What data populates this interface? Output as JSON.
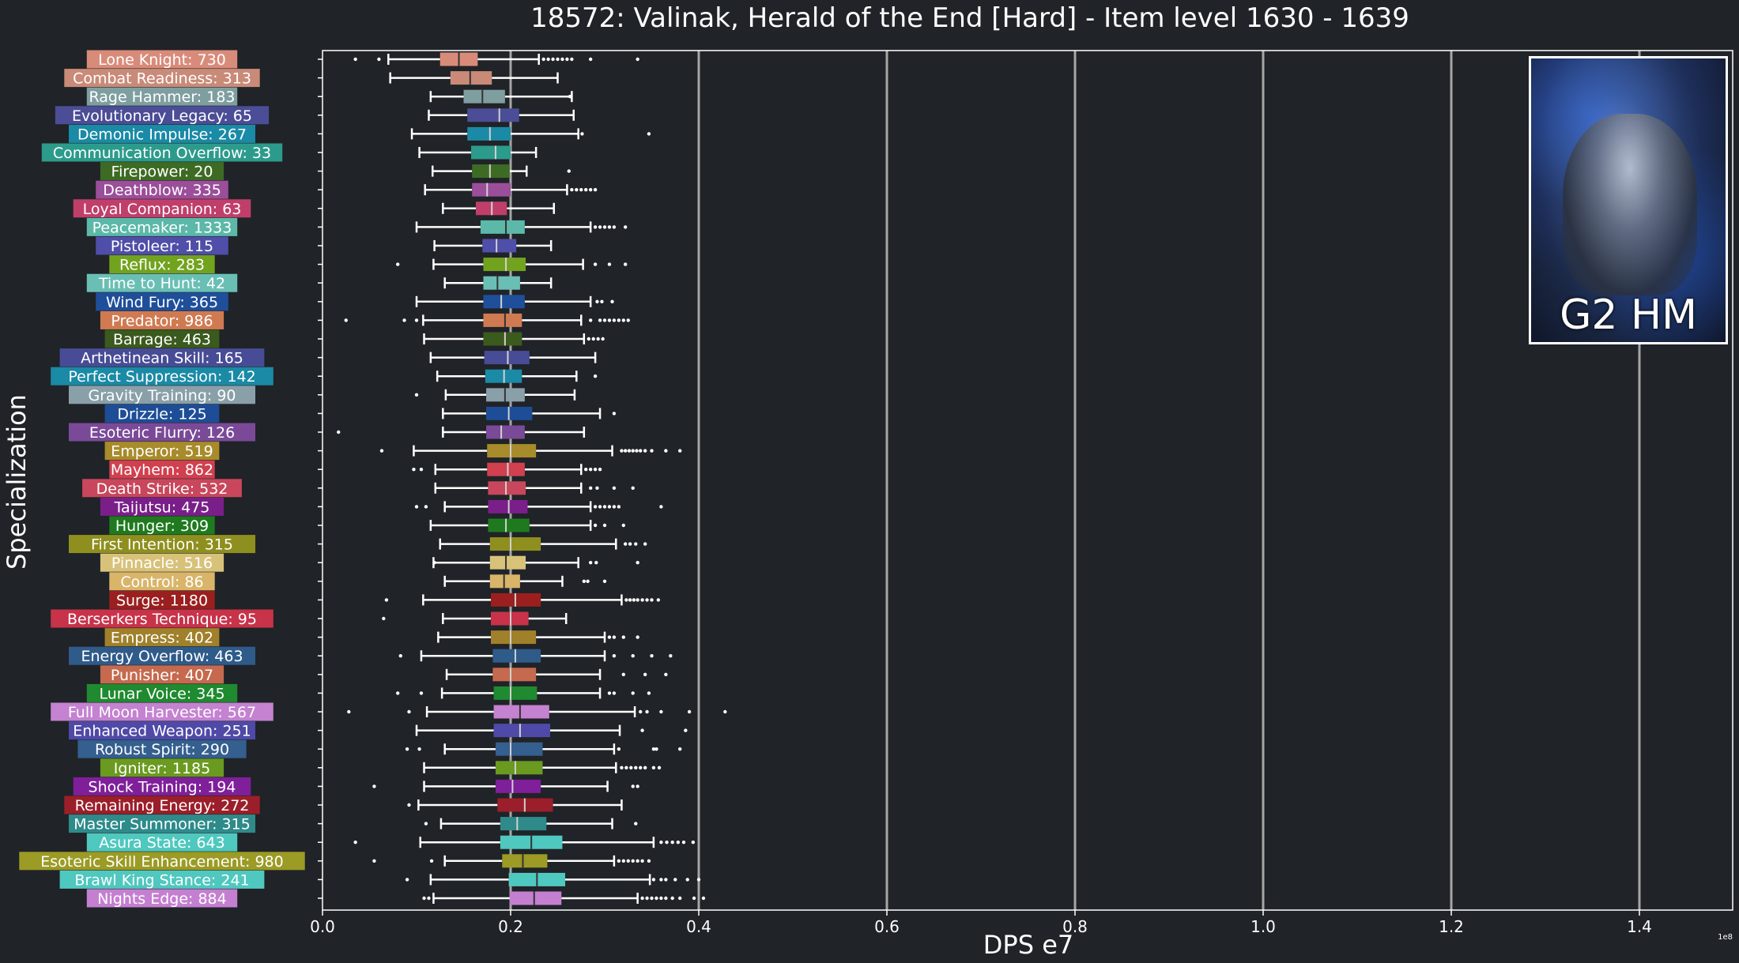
{
  "title": "18572: Valinak, Herald of the End [Hard] - Item level 1630 - 1639",
  "image_badge": "G2 HM",
  "chart_data": {
    "type": "boxplot",
    "orientation": "horizontal",
    "title": "18572: Valinak, Herald of the End [Hard] - Item level 1630 - 1639",
    "xlabel": "DPS e7",
    "ylabel": "Specialization",
    "offset_text": "1e8",
    "xlim": [
      0,
      1.5
    ],
    "xticks": [
      "0.0",
      "0.2",
      "0.4",
      "0.6",
      "0.8",
      "1.0",
      "1.2",
      "1.4"
    ],
    "xtick_values": [
      0,
      0.2,
      0.4,
      0.6,
      0.8,
      1.0,
      1.2,
      1.4
    ],
    "grid": "vertical",
    "categories": [
      {
        "label": "Lone Knight: 730",
        "color": "#d98b7a",
        "whisker": [
          0.07,
          0.23
        ],
        "q1": 0.125,
        "median": 0.145,
        "q3": 0.165,
        "outliers": [
          0.035,
          0.06,
          0.235,
          0.24,
          0.245,
          0.25,
          0.255,
          0.26,
          0.265,
          0.285,
          0.335
        ]
      },
      {
        "label": "Combat Readiness: 313",
        "color": "#c98a78",
        "whisker": [
          0.072,
          0.25
        ],
        "q1": 0.136,
        "median": 0.157,
        "q3": 0.18,
        "outliers": []
      },
      {
        "label": "Rage Hammer: 183",
        "color": "#7f9ea0",
        "whisker": [
          0.115,
          0.265
        ],
        "q1": 0.15,
        "median": 0.17,
        "q3": 0.194,
        "outliers": [
          0.263
        ]
      },
      {
        "label": "Evolutionary Legacy: 65",
        "color": "#4b4d96",
        "whisker": [
          0.113,
          0.267
        ],
        "q1": 0.154,
        "median": 0.188,
        "q3": 0.209,
        "outliers": []
      },
      {
        "label": "Demonic Impulse: 267",
        "color": "#1a8aa6",
        "whisker": [
          0.095,
          0.272
        ],
        "q1": 0.154,
        "median": 0.178,
        "q3": 0.2,
        "outliers": [
          0.276,
          0.347
        ]
      },
      {
        "label": "Communication Overflow: 33",
        "color": "#2c9b8c",
        "whisker": [
          0.103,
          0.227
        ],
        "q1": 0.158,
        "median": 0.184,
        "q3": 0.2,
        "outliers": []
      },
      {
        "label": "Firepower: 20",
        "color": "#3d6b23",
        "whisker": [
          0.117,
          0.217
        ],
        "q1": 0.159,
        "median": 0.178,
        "q3": 0.199,
        "outliers": [
          0.262
        ]
      },
      {
        "label": "Deathblow: 335",
        "color": "#9b4e9a",
        "whisker": [
          0.109,
          0.26
        ],
        "q1": 0.159,
        "median": 0.175,
        "q3": 0.2,
        "outliers": [
          0.265,
          0.27,
          0.275,
          0.28,
          0.285,
          0.29
        ]
      },
      {
        "label": "Loyal Companion: 63",
        "color": "#c03f6a",
        "whisker": [
          0.128,
          0.246
        ],
        "q1": 0.163,
        "median": 0.18,
        "q3": 0.196,
        "outliers": []
      },
      {
        "label": "Peacemaker: 1333",
        "color": "#5cb8a8",
        "whisker": [
          0.1,
          0.285
        ],
        "q1": 0.168,
        "median": 0.195,
        "q3": 0.215,
        "outliers": [
          0.29,
          0.295,
          0.3,
          0.305,
          0.31,
          0.322
        ]
      },
      {
        "label": "Pistoleer: 115",
        "color": "#4f4ea8",
        "whisker": [
          0.119,
          0.243
        ],
        "q1": 0.17,
        "median": 0.185,
        "q3": 0.206,
        "outliers": []
      },
      {
        "label": "Reflux: 283",
        "color": "#72a31f",
        "whisker": [
          0.118,
          0.277
        ],
        "q1": 0.171,
        "median": 0.195,
        "q3": 0.216,
        "outliers": [
          0.08,
          0.29,
          0.305,
          0.322
        ]
      },
      {
        "label": "Time to Hunt: 42",
        "color": "#6abfb5",
        "whisker": [
          0.13,
          0.243
        ],
        "q1": 0.171,
        "median": 0.186,
        "q3": 0.21,
        "outliers": []
      },
      {
        "label": "Wind Fury: 365",
        "color": "#1f4f9b",
        "whisker": [
          0.1,
          0.285
        ],
        "q1": 0.171,
        "median": 0.19,
        "q3": 0.215,
        "outliers": [
          0.292,
          0.297,
          0.308
        ]
      },
      {
        "label": "Predator: 986",
        "color": "#d07a52",
        "whisker": [
          0.107,
          0.275
        ],
        "q1": 0.171,
        "median": 0.194,
        "q3": 0.212,
        "outliers": [
          0.025,
          0.087,
          0.1,
          0.285,
          0.295,
          0.3,
          0.305,
          0.31,
          0.315,
          0.32,
          0.325
        ]
      },
      {
        "label": "Barrage: 463",
        "color": "#3b5a1e",
        "whisker": [
          0.108,
          0.278
        ],
        "q1": 0.171,
        "median": 0.194,
        "q3": 0.212,
        "outliers": [
          0.283,
          0.288,
          0.293,
          0.298
        ]
      },
      {
        "label": "Arthetinean Skill: 165",
        "color": "#484c96",
        "whisker": [
          0.115,
          0.29
        ],
        "q1": 0.172,
        "median": 0.197,
        "q3": 0.22,
        "outliers": []
      },
      {
        "label": "Perfect Suppression: 142",
        "color": "#1a8aa6",
        "whisker": [
          0.122,
          0.27
        ],
        "q1": 0.173,
        "median": 0.193,
        "q3": 0.212,
        "outliers": [
          0.29
        ]
      },
      {
        "label": "Gravity Training: 90",
        "color": "#8aa0a8",
        "whisker": [
          0.131,
          0.268
        ],
        "q1": 0.174,
        "median": 0.194,
        "q3": 0.215,
        "outliers": [
          0.1
        ]
      },
      {
        "label": "Drizzle: 125",
        "color": "#1d4d96",
        "whisker": [
          0.128,
          0.295
        ],
        "q1": 0.174,
        "median": 0.198,
        "q3": 0.223,
        "outliers": [
          0.31
        ]
      },
      {
        "label": "Esoteric Flurry: 126",
        "color": "#7a4a98",
        "whisker": [
          0.128,
          0.278
        ],
        "q1": 0.174,
        "median": 0.19,
        "q3": 0.215,
        "outliers": [
          0.017
        ]
      },
      {
        "label": "Emperor: 519",
        "color": "#a88b2a",
        "whisker": [
          0.097,
          0.308
        ],
        "q1": 0.175,
        "median": 0.2,
        "q3": 0.227,
        "outliers": [
          0.063,
          0.318,
          0.322,
          0.326,
          0.33,
          0.334,
          0.338,
          0.343,
          0.35,
          0.365,
          0.38
        ]
      },
      {
        "label": "Mayhem: 862",
        "color": "#d0404f",
        "whisker": [
          0.12,
          0.275
        ],
        "q1": 0.175,
        "median": 0.197,
        "q3": 0.215,
        "outliers": [
          0.097,
          0.105,
          0.28,
          0.285,
          0.29,
          0.295
        ]
      },
      {
        "label": "Death Strike: 532",
        "color": "#c8475c",
        "whisker": [
          0.12,
          0.275
        ],
        "q1": 0.176,
        "median": 0.195,
        "q3": 0.216,
        "outliers": [
          0.285,
          0.292,
          0.31,
          0.33
        ]
      },
      {
        "label": "Taijutsu: 475",
        "color": "#7a1f8a",
        "whisker": [
          0.13,
          0.285
        ],
        "q1": 0.176,
        "median": 0.198,
        "q3": 0.218,
        "outliers": [
          0.1,
          0.11,
          0.29,
          0.295,
          0.3,
          0.305,
          0.31,
          0.315,
          0.36
        ]
      },
      {
        "label": "Hunger: 309",
        "color": "#1f7a1f",
        "whisker": [
          0.115,
          0.285
        ],
        "q1": 0.176,
        "median": 0.195,
        "q3": 0.22,
        "outliers": [
          0.29,
          0.3,
          0.32
        ]
      },
      {
        "label": "First Intention: 315",
        "color": "#8f8f1f",
        "whisker": [
          0.125,
          0.312
        ],
        "q1": 0.178,
        "median": 0.2,
        "q3": 0.232,
        "outliers": [
          0.322,
          0.327,
          0.333,
          0.343
        ]
      },
      {
        "label": "Pinnacle: 516",
        "color": "#d8c27a",
        "whisker": [
          0.118,
          0.272
        ],
        "q1": 0.178,
        "median": 0.195,
        "q3": 0.216,
        "outliers": [
          0.119,
          0.285,
          0.291,
          0.335
        ]
      },
      {
        "label": "Control: 86",
        "color": "#d9b56a",
        "whisker": [
          0.13,
          0.255
        ],
        "q1": 0.178,
        "median": 0.193,
        "q3": 0.21,
        "outliers": [
          0.278,
          0.282,
          0.3
        ]
      },
      {
        "label": "Surge: 1180",
        "color": "#9b1f1f",
        "whisker": [
          0.107,
          0.318
        ],
        "q1": 0.179,
        "median": 0.205,
        "q3": 0.232,
        "outliers": [
          0.068,
          0.323,
          0.327,
          0.331,
          0.335,
          0.34,
          0.345,
          0.35,
          0.357
        ]
      },
      {
        "label": "Berserkers Technique: 95",
        "color": "#c8334a",
        "whisker": [
          0.128,
          0.259
        ],
        "q1": 0.179,
        "median": 0.2,
        "q3": 0.219,
        "outliers": [
          0.065
        ]
      },
      {
        "label": "Empress: 402",
        "color": "#a0802a",
        "whisker": [
          0.123,
          0.3
        ],
        "q1": 0.179,
        "median": 0.2,
        "q3": 0.227,
        "outliers": [
          0.305,
          0.31,
          0.32,
          0.335
        ]
      },
      {
        "label": "Energy Overflow: 463",
        "color": "#2f5b8a",
        "whisker": [
          0.105,
          0.3
        ],
        "q1": 0.181,
        "median": 0.205,
        "q3": 0.232,
        "outliers": [
          0.083,
          0.31,
          0.33,
          0.35,
          0.37
        ]
      },
      {
        "label": "Punisher: 407",
        "color": "#c56a4e",
        "whisker": [
          0.132,
          0.295
        ],
        "q1": 0.181,
        "median": 0.2,
        "q3": 0.227,
        "outliers": [
          0.32,
          0.343,
          0.365
        ]
      },
      {
        "label": "Lunar Voice: 345",
        "color": "#1f8a2f",
        "whisker": [
          0.127,
          0.295
        ],
        "q1": 0.182,
        "median": 0.2,
        "q3": 0.228,
        "outliers": [
          0.08,
          0.105,
          0.305,
          0.31,
          0.33,
          0.347
        ]
      },
      {
        "label": "Full Moon Harvester: 567",
        "color": "#c482d0",
        "whisker": [
          0.111,
          0.332
        ],
        "q1": 0.182,
        "median": 0.21,
        "q3": 0.241,
        "outliers": [
          0.028,
          0.092,
          0.338,
          0.345,
          0.36,
          0.39,
          0.428
        ]
      },
      {
        "label": "Enhanced Weapon: 251",
        "color": "#4f4aa8",
        "whisker": [
          0.1,
          0.316
        ],
        "q1": 0.182,
        "median": 0.21,
        "q3": 0.242,
        "outliers": [
          0.34,
          0.386
        ]
      },
      {
        "label": "Robust Spirit: 290",
        "color": "#345f8f",
        "whisker": [
          0.13,
          0.31
        ],
        "q1": 0.184,
        "median": 0.2,
        "q3": 0.234,
        "outliers": [
          0.09,
          0.103,
          0.315,
          0.352,
          0.355,
          0.38
        ]
      },
      {
        "label": "Igniter: 1185",
        "color": "#6a9a1f",
        "whisker": [
          0.108,
          0.312
        ],
        "q1": 0.184,
        "median": 0.205,
        "q3": 0.234,
        "outliers": [
          0.318,
          0.323,
          0.328,
          0.333,
          0.338,
          0.343,
          0.352,
          0.358
        ]
      },
      {
        "label": "Shock Training: 194",
        "color": "#7f1f9a",
        "whisker": [
          0.108,
          0.303
        ],
        "q1": 0.184,
        "median": 0.202,
        "q3": 0.232,
        "outliers": [
          0.055,
          0.33,
          0.335
        ]
      },
      {
        "label": "Remaining Energy: 272",
        "color": "#9b1f2a",
        "whisker": [
          0.102,
          0.318
        ],
        "q1": 0.186,
        "median": 0.215,
        "q3": 0.245,
        "outliers": [
          0.092
        ]
      },
      {
        "label": "Master Summoner: 315",
        "color": "#2f8a8a",
        "whisker": [
          0.126,
          0.308
        ],
        "q1": 0.189,
        "median": 0.207,
        "q3": 0.238,
        "outliers": [
          0.11,
          0.333
        ]
      },
      {
        "label": "Asura State: 643",
        "color": "#4fc8bf",
        "whisker": [
          0.104,
          0.352
        ],
        "q1": 0.189,
        "median": 0.222,
        "q3": 0.255,
        "outliers": [
          0.035,
          0.36,
          0.366,
          0.372,
          0.378,
          0.384,
          0.394
        ]
      },
      {
        "label": "Esoteric Skill Enhancement: 980",
        "color": "#9b9b25",
        "whisker": [
          0.13,
          0.31
        ],
        "q1": 0.191,
        "median": 0.213,
        "q3": 0.239,
        "outliers": [
          0.055,
          0.116,
          0.315,
          0.32,
          0.325,
          0.33,
          0.335,
          0.34,
          0.347
        ]
      },
      {
        "label": "Brawl King Stance: 241",
        "color": "#4fc8bf",
        "whisker": [
          0.115,
          0.348
        ],
        "q1": 0.198,
        "median": 0.228,
        "q3": 0.258,
        "outliers": [
          0.09,
          0.352,
          0.36,
          0.365,
          0.375,
          0.388,
          0.4
        ]
      },
      {
        "label": "Nights Edge: 884",
        "color": "#c47fd0",
        "whisker": [
          0.118,
          0.335
        ],
        "q1": 0.199,
        "median": 0.225,
        "q3": 0.254,
        "outliers": [
          0.108,
          0.113,
          0.34,
          0.345,
          0.35,
          0.355,
          0.36,
          0.365,
          0.372,
          0.38,
          0.395,
          0.405
        ]
      }
    ]
  }
}
